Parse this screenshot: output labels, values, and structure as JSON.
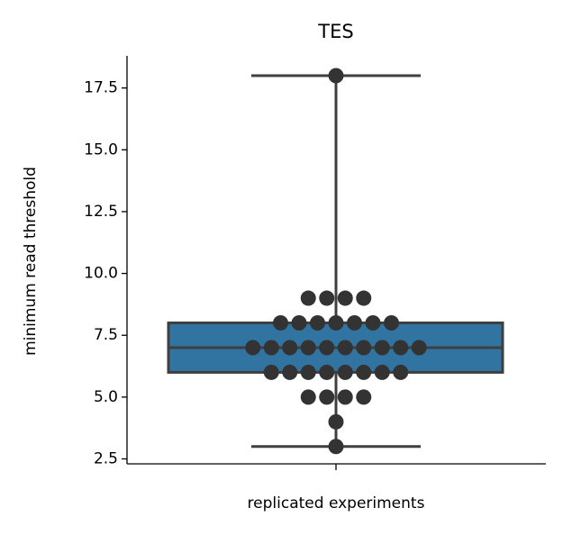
{
  "chart_data": {
    "type": "box",
    "title": "TES",
    "y_label": "minimum read threshold",
    "x_label": "replicated experiments",
    "q1": 6,
    "median": 7,
    "q3": 8,
    "whisker_low": 3,
    "whisker_high": 18,
    "box_color": "#3274a1",
    "line_color": "#3f3f3f",
    "points": [
      18,
      9,
      9,
      9,
      9,
      8,
      8,
      8,
      8,
      8,
      8,
      8,
      7,
      7,
      7,
      7,
      7,
      7,
      7,
      7,
      7,
      7,
      6,
      6,
      6,
      6,
      6,
      6,
      6,
      6,
      5,
      5,
      5,
      5,
      4,
      3
    ],
    "point_color": "#333333",
    "ylim": [
      2.3,
      18.8
    ],
    "yticks": [
      2.5,
      {
        "value": 5,
        "label": "5.0"
      },
      7.5,
      {
        "value": 10,
        "label": "10.0"
      },
      12.5,
      {
        "value": 15,
        "label": "15.0"
      },
      17.5
    ]
  }
}
